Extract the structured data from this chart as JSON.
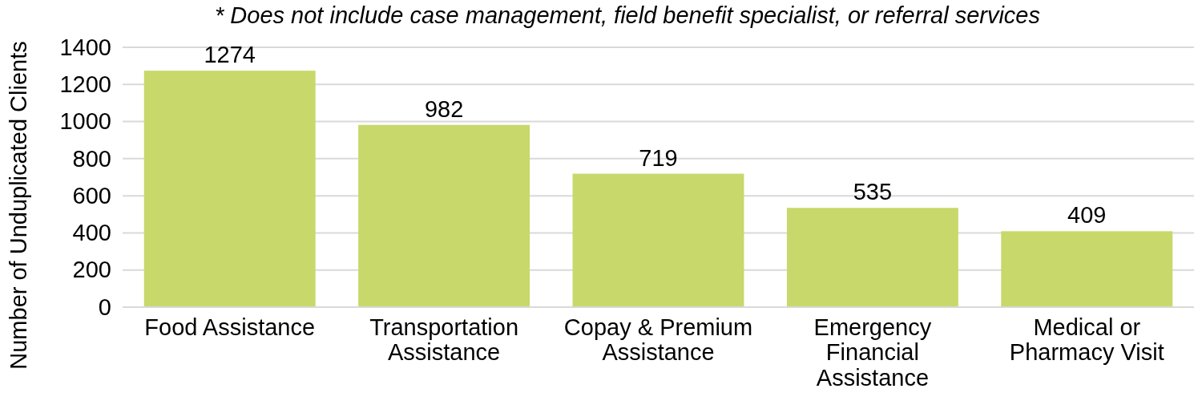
{
  "chart_data": {
    "type": "bar",
    "title": "* Does not include case management, field benefit specialist, or referral services",
    "ylabel": "Number of Unduplicated Clients",
    "categories": [
      "Food Assistance",
      "Transportation Assistance",
      "Copay & Premium Assistance",
      "Emergency Financial Assistance",
      "Medical or Pharmacy Visit"
    ],
    "values": [
      1274,
      982,
      719,
      535,
      409
    ],
    "color": "#c8d86a",
    "ylim": [
      0,
      1400
    ],
    "yticks": [
      0,
      200,
      400,
      600,
      800,
      1000,
      1200,
      1400
    ],
    "grid": "y",
    "data_labels": true
  }
}
